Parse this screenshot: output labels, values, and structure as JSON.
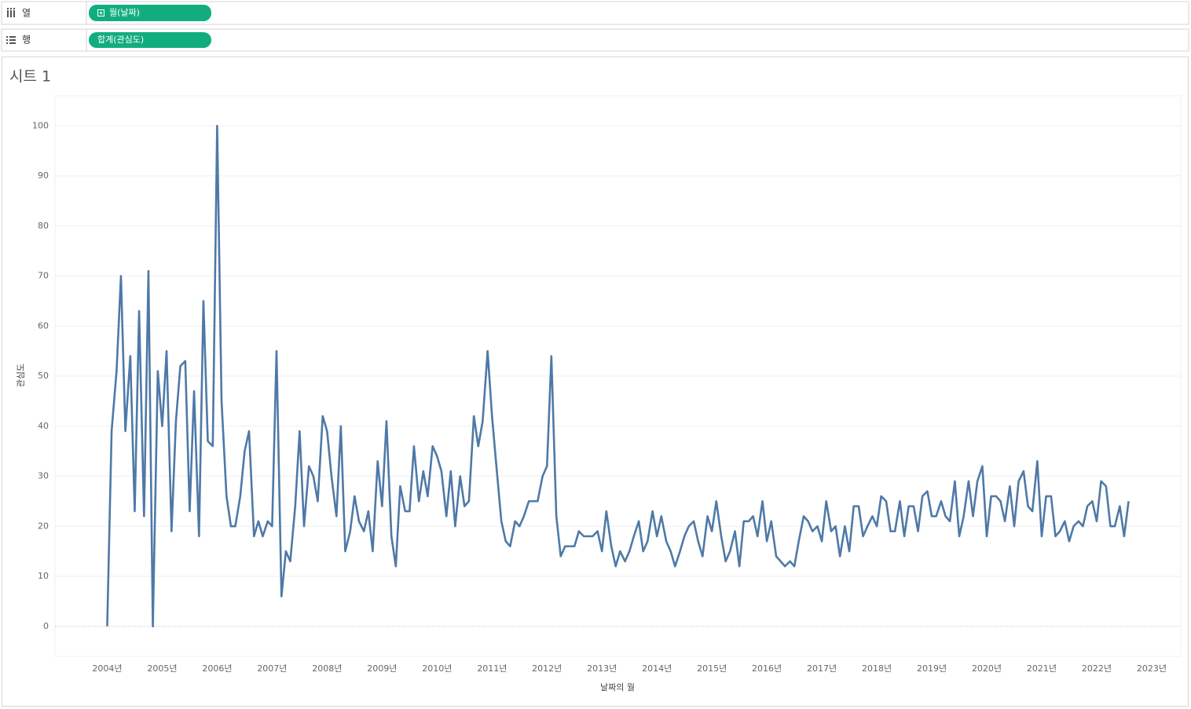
{
  "shelves": [
    {
      "label": "열",
      "pill": "월(날짜)"
    },
    {
      "label": "행",
      "pill": "합계(관심도)"
    }
  ],
  "chart_data": {
    "type": "line",
    "title": "시트 1",
    "x_label": "날짜의 월",
    "y_label": "관심도",
    "color": "#4e79a7",
    "grid": true,
    "x": [
      2004,
      2004.08,
      2004.17,
      2004.25,
      2004.33,
      2004.42,
      2004.5,
      2004.58,
      2004.67,
      2004.75,
      2004.83,
      2004.92,
      2005,
      2005.08,
      2005.17,
      2005.25,
      2005.33,
      2005.42,
      2005.5,
      2005.58,
      2005.67,
      2005.75,
      2005.83,
      2005.92,
      2006,
      2006.08,
      2006.17,
      2006.25,
      2006.33,
      2006.42,
      2006.5,
      2006.58,
      2006.67,
      2006.75,
      2006.83,
      2006.92,
      2007,
      2007.08,
      2007.17,
      2007.25,
      2007.33,
      2007.42,
      2007.5,
      2007.58,
      2007.67,
      2007.75,
      2007.83,
      2007.92,
      2008,
      2008.08,
      2008.17,
      2008.25,
      2008.33,
      2008.42,
      2008.5,
      2008.58,
      2008.67,
      2008.75,
      2008.83,
      2008.92,
      2009,
      2009.08,
      2009.17,
      2009.25,
      2009.33,
      2009.42,
      2009.5,
      2009.58,
      2009.67,
      2009.75,
      2009.83,
      2009.92,
      2010,
      2010.08,
      2010.17,
      2010.25,
      2010.33,
      2010.42,
      2010.5,
      2010.58,
      2010.67,
      2010.75,
      2010.83,
      2010.92,
      2011,
      2011.08,
      2011.17,
      2011.25,
      2011.33,
      2011.42,
      2011.5,
      2011.58,
      2011.67,
      2011.75,
      2011.83,
      2011.92,
      2012,
      2012.08,
      2012.17,
      2012.25,
      2012.33,
      2012.42,
      2012.5,
      2012.58,
      2012.67,
      2012.75,
      2012.83,
      2012.92,
      2013,
      2013.08,
      2013.17,
      2013.25,
      2013.33,
      2013.42,
      2013.5,
      2013.58,
      2013.67,
      2013.75,
      2013.83,
      2013.92,
      2014,
      2014.08,
      2014.17,
      2014.25,
      2014.33,
      2014.42,
      2014.5,
      2014.58,
      2014.67,
      2014.75,
      2014.83,
      2014.92,
      2015,
      2015.08,
      2015.17,
      2015.25,
      2015.33,
      2015.42,
      2015.5,
      2015.58,
      2015.67,
      2015.75,
      2015.83,
      2015.92,
      2016,
      2016.08,
      2016.17,
      2016.25,
      2016.33,
      2016.42,
      2016.5,
      2016.58,
      2016.67,
      2016.75,
      2016.83,
      2016.92,
      2017,
      2017.08,
      2017.17,
      2017.25,
      2017.33,
      2017.42,
      2017.5,
      2017.58,
      2017.67,
      2017.75,
      2017.83,
      2017.92,
      2018,
      2018.08,
      2018.17,
      2018.25,
      2018.33,
      2018.42,
      2018.5,
      2018.58,
      2018.67,
      2018.75,
      2018.83,
      2018.92,
      2019,
      2019.08,
      2019.17,
      2019.25,
      2019.33,
      2019.42,
      2019.5,
      2019.58,
      2019.67,
      2019.75,
      2019.83,
      2019.92,
      2020,
      2020.08,
      2020.17,
      2020.25,
      2020.33,
      2020.42,
      2020.5,
      2020.58,
      2020.67,
      2020.75,
      2020.83,
      2020.92,
      2021,
      2021.08,
      2021.17,
      2021.25,
      2021.33,
      2021.42,
      2021.5,
      2021.58,
      2021.67,
      2021.75,
      2021.83,
      2021.92,
      2022,
      2022.08,
      2022.17,
      2022.25,
      2022.33,
      2022.42,
      2022.5,
      2022.58
    ],
    "values": [
      0,
      39,
      51,
      70,
      39,
      54,
      23,
      63,
      22,
      71,
      0,
      51,
      40,
      55,
      19,
      41,
      52,
      53,
      23,
      47,
      18,
      65,
      37,
      36,
      100,
      45,
      26,
      20,
      20,
      26,
      35,
      39,
      18,
      21,
      18,
      21,
      20,
      55,
      6,
      15,
      13,
      24,
      39,
      20,
      32,
      30,
      25,
      42,
      39,
      30,
      22,
      40,
      15,
      19,
      26,
      21,
      19,
      23,
      15,
      33,
      24,
      41,
      18,
      12,
      28,
      23,
      23,
      36,
      25,
      31,
      26,
      36,
      34,
      31,
      22,
      31,
      20,
      30,
      24,
      25,
      42,
      36,
      41,
      55,
      42,
      32,
      21,
      17,
      16,
      21,
      20,
      22,
      25,
      25,
      25,
      30,
      32,
      54,
      22,
      14,
      16,
      16,
      16,
      19,
      18,
      18,
      18,
      19,
      15,
      23,
      16,
      12,
      15,
      13,
      15,
      18,
      21,
      15,
      17,
      23,
      18,
      22,
      17,
      15,
      12,
      15,
      18,
      20,
      21,
      17,
      14,
      22,
      19,
      25,
      18,
      13,
      15,
      19,
      12,
      21,
      21,
      22,
      18,
      25,
      17,
      21,
      14,
      13,
      12,
      13,
      12,
      17,
      22,
      21,
      19,
      20,
      17,
      25,
      19,
      20,
      14,
      20,
      15,
      24,
      24,
      18,
      20,
      22,
      20,
      26,
      25,
      19,
      19,
      25,
      18,
      24,
      24,
      19,
      26,
      27,
      22,
      22,
      25,
      22,
      21,
      29,
      18,
      22,
      29,
      22,
      29,
      32,
      18,
      26,
      26,
      25,
      21,
      28,
      20,
      29,
      31,
      24,
      23,
      33,
      18,
      26,
      26,
      18,
      19,
      21,
      17,
      20,
      21,
      20,
      24,
      25,
      21,
      29,
      28,
      20,
      20,
      24,
      18,
      25
    ],
    "xlim": [
      2003.05,
      2023.53
    ],
    "xticks": [
      {
        "value": 2004,
        "label": "2004년"
      },
      {
        "value": 2005,
        "label": "2005년"
      },
      {
        "value": 2006,
        "label": "2006년"
      },
      {
        "value": 2007,
        "label": "2007년"
      },
      {
        "value": 2008,
        "label": "2008년"
      },
      {
        "value": 2009,
        "label": "2009년"
      },
      {
        "value": 2010,
        "label": "2010년"
      },
      {
        "value": 2011,
        "label": "2011년"
      },
      {
        "value": 2012,
        "label": "2012년"
      },
      {
        "value": 2013,
        "label": "2013년"
      },
      {
        "value": 2014,
        "label": "2014년"
      },
      {
        "value": 2015,
        "label": "2015년"
      },
      {
        "value": 2016,
        "label": "2016년"
      },
      {
        "value": 2017,
        "label": "2017년"
      },
      {
        "value": 2018,
        "label": "2018년"
      },
      {
        "value": 2019,
        "label": "2019년"
      },
      {
        "value": 2020,
        "label": "2020년"
      },
      {
        "value": 2021,
        "label": "2021년"
      },
      {
        "value": 2022,
        "label": "2022년"
      },
      {
        "value": 2023,
        "label": "2023년"
      }
    ],
    "ylim": [
      -6,
      106
    ],
    "yticks": [
      0,
      10,
      20,
      30,
      40,
      50,
      60,
      70,
      80,
      90,
      100
    ]
  }
}
